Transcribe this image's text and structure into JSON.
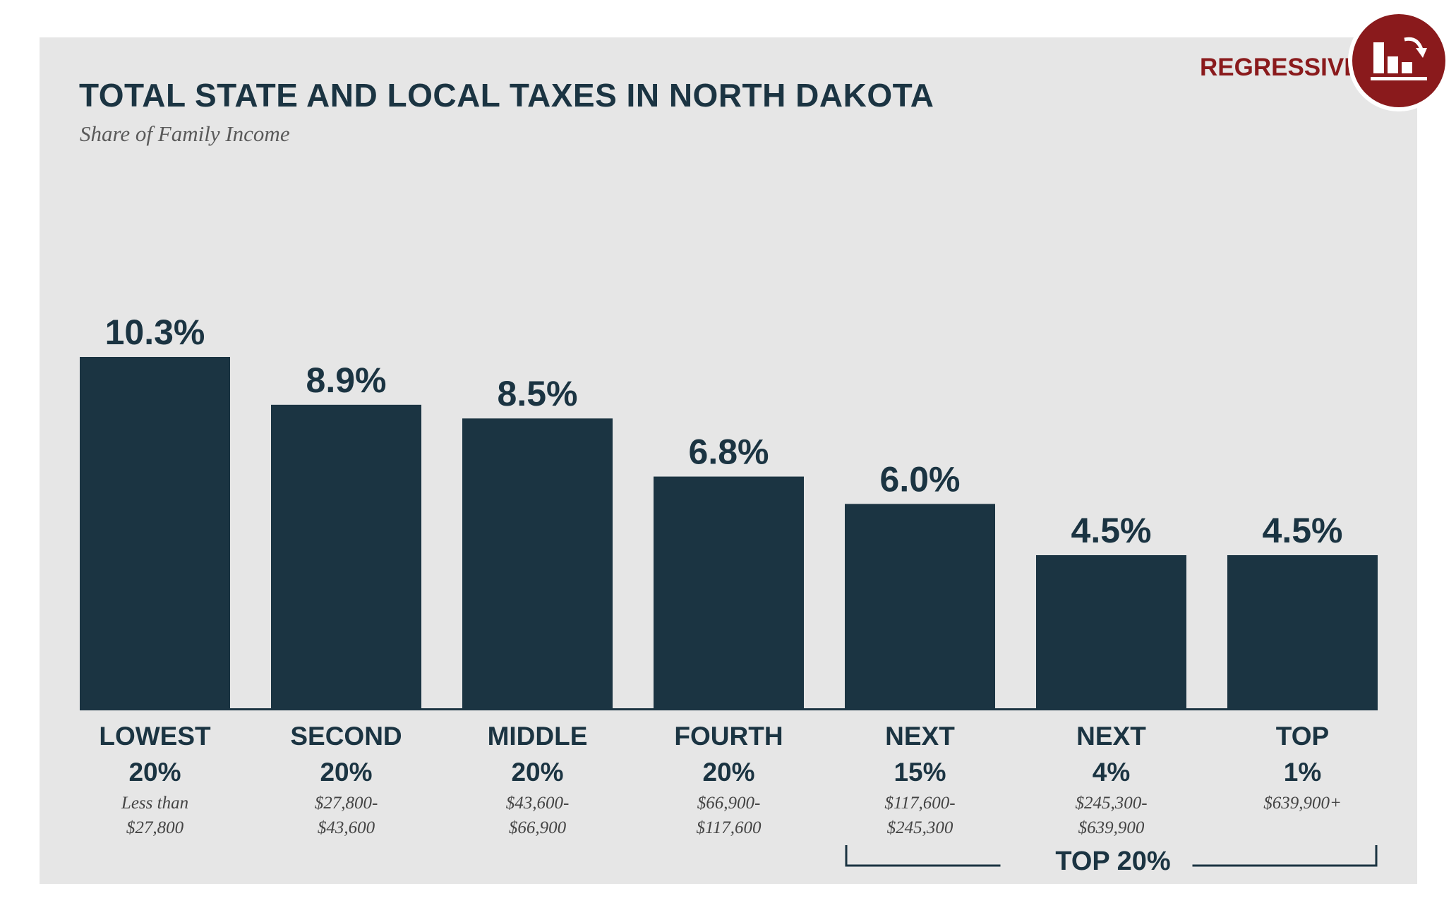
{
  "header": {
    "title": "TOTAL STATE AND LOCAL TAXES IN NORTH DAKOTA",
    "subtitle": "Share of Family Income"
  },
  "badge": {
    "label": "REGRESSIVE",
    "icon": "regressive-bar-chart-icon",
    "color": "#8a1a1c"
  },
  "colors": {
    "bar": "#1b3442",
    "panel": "#e6e6e6",
    "text": "#1b3442",
    "range_text": "#444444"
  },
  "chart_data": {
    "type": "bar",
    "title": "TOTAL STATE AND LOCAL TAXES IN NORTH DAKOTA",
    "subtitle": "Share of Family Income",
    "ylim": [
      0,
      10.3
    ],
    "grid": false,
    "categories": [
      {
        "line1": "LOWEST",
        "line2": "20%",
        "range1": "Less than",
        "range2": "$27,800"
      },
      {
        "line1": "SECOND",
        "line2": "20%",
        "range1": "$27,800-",
        "range2": "$43,600"
      },
      {
        "line1": "MIDDLE",
        "line2": "20%",
        "range1": "$43,600-",
        "range2": "$66,900"
      },
      {
        "line1": "FOURTH",
        "line2": "20%",
        "range1": "$66,900-",
        "range2": "$117,600"
      },
      {
        "line1": "NEXT",
        "line2": "15%",
        "range1": "$117,600-",
        "range2": "$245,300"
      },
      {
        "line1": "NEXT",
        "line2": "4%",
        "range1": "$245,300-",
        "range2": "$639,900"
      },
      {
        "line1": "TOP",
        "line2": "1%",
        "range1": "$639,900+",
        "range2": ""
      }
    ],
    "values": [
      10.3,
      8.9,
      8.5,
      6.8,
      6.0,
      4.5,
      4.5
    ],
    "value_labels": [
      "10.3%",
      "8.9%",
      "8.5%",
      "6.8%",
      "6.0%",
      "4.5%",
      "4.5%"
    ],
    "group_bracket": {
      "label": "TOP 20%",
      "from_index": 4,
      "to_index": 6
    }
  }
}
